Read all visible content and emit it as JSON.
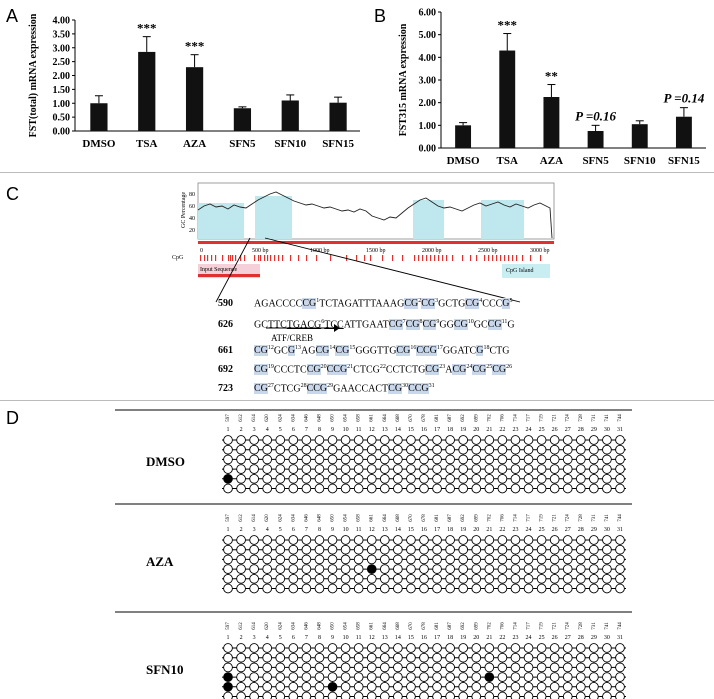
{
  "panels": {
    "a": "A",
    "b": "B",
    "c": "C",
    "d": "D"
  },
  "chart_data": [
    {
      "type": "bar",
      "ylabel": "FST(total) mRNA expression",
      "ylim": [
        0,
        4
      ],
      "yticks": [
        "0.00",
        "0.50",
        "1.00",
        "1.50",
        "2.00",
        "2.50",
        "3.00",
        "3.50",
        "4.00"
      ],
      "categories": [
        "DMSO",
        "TSA",
        "AZA",
        "SFN5",
        "SFN10",
        "SFN15"
      ],
      "values": [
        1.0,
        2.85,
        2.3,
        0.82,
        1.1,
        1.02
      ],
      "errors": [
        0.27,
        0.55,
        0.45,
        0.05,
        0.2,
        0.2
      ],
      "annotations": [
        "",
        "***",
        "***",
        "",
        "",
        ""
      ]
    },
    {
      "type": "bar",
      "ylabel": "FST315 mRNA expression",
      "ylim": [
        0,
        6
      ],
      "yticks": [
        "0.00",
        "1.00",
        "2.00",
        "3.00",
        "4.00",
        "5.00",
        "6.00"
      ],
      "categories": [
        "DMSO",
        "TSA",
        "AZA",
        "SFN5",
        "SFN10",
        "SFN15"
      ],
      "values": [
        1.0,
        4.3,
        2.25,
        0.75,
        1.05,
        1.38
      ],
      "errors": [
        0.12,
        0.75,
        0.55,
        0.25,
        0.15,
        0.4
      ],
      "annotations": [
        "",
        "***",
        "**",
        "P =0.16",
        "",
        "P =0.14"
      ]
    }
  ],
  "cpg_plot": {
    "ylabel": "GC Percentage",
    "yticks": [
      "80",
      "60",
      "40",
      "20"
    ],
    "xticks": [
      "0",
      "500 bp",
      "1000 bp",
      "1500 bp",
      "2000 bp",
      "2500 bp",
      "3000 bp"
    ],
    "cpg_label": "CpG",
    "input_label": "Input Sequence",
    "island_label": "CpG Island"
  },
  "sequence": [
    {
      "num": "590",
      "parts": [
        [
          "t",
          "AGACCCC"
        ],
        [
          "c",
          "CG"
        ],
        [
          "s",
          "1"
        ],
        [
          "t",
          "TCTAGATTTAAAG"
        ],
        [
          "c",
          "CG"
        ],
        [
          "s",
          "2"
        ],
        [
          "c",
          "CG"
        ],
        [
          "s",
          "3"
        ],
        [
          "t",
          "GCTG"
        ],
        [
          "c",
          "CG"
        ],
        [
          "s",
          "4"
        ],
        [
          "t",
          "CCC"
        ],
        [
          "c",
          "G"
        ],
        [
          "s",
          "5"
        ]
      ]
    },
    {
      "num": "626",
      "parts": [
        [
          "t",
          "GCTTC"
        ],
        [
          "u",
          "TGACG"
        ],
        [
          "s",
          "6"
        ],
        [
          "u",
          "TCC"
        ],
        [
          "t",
          "ATTGAAT"
        ],
        [
          "c",
          "CG"
        ],
        [
          "s",
          "7"
        ],
        [
          "c",
          "CG"
        ],
        [
          "s",
          "8"
        ],
        [
          "c",
          "CG"
        ],
        [
          "s",
          "9"
        ],
        [
          "t",
          "GG"
        ],
        [
          "c",
          "CG"
        ],
        [
          "s",
          "10"
        ],
        [
          "t",
          "GC"
        ],
        [
          "c",
          "CG"
        ],
        [
          "s",
          "11"
        ],
        [
          "t",
          "G"
        ]
      ]
    },
    {
      "num": "661",
      "parts": [
        [
          "c",
          "CG"
        ],
        [
          "s",
          "12"
        ],
        [
          "t",
          "GC"
        ],
        [
          "c",
          "G"
        ],
        [
          "s",
          "13"
        ],
        [
          "t",
          "AG"
        ],
        [
          "c",
          "CG"
        ],
        [
          "s",
          "14"
        ],
        [
          "c",
          "CG"
        ],
        [
          "s",
          "15"
        ],
        [
          "t",
          "GGGTTG"
        ],
        [
          "c",
          "CG"
        ],
        [
          "s",
          "16"
        ],
        [
          "c",
          "CCG"
        ],
        [
          "s",
          "17"
        ],
        [
          "t",
          "GGATC"
        ],
        [
          "c",
          "G"
        ],
        [
          "s",
          "18"
        ],
        [
          "t",
          "CTG"
        ]
      ]
    },
    {
      "num": "692",
      "parts": [
        [
          "c",
          "CG"
        ],
        [
          "s",
          "19"
        ],
        [
          "t",
          "CCCTC"
        ],
        [
          "c",
          "CG"
        ],
        [
          "s",
          "20"
        ],
        [
          "c",
          "CCG"
        ],
        [
          "s",
          "21"
        ],
        [
          "t",
          "CTCG"
        ],
        [
          "s",
          "22"
        ],
        [
          "t",
          "CCTCTG"
        ],
        [
          "c",
          "CG"
        ],
        [
          "s",
          "23"
        ],
        [
          "t",
          "A"
        ],
        [
          "c",
          "CG"
        ],
        [
          "s",
          "24"
        ],
        [
          "c",
          "CG"
        ],
        [
          "s",
          "25"
        ],
        [
          "c",
          "CG"
        ],
        [
          "s",
          "26"
        ]
      ]
    },
    {
      "num": "723",
      "parts": [
        [
          "c",
          "CG"
        ],
        [
          "s",
          "27"
        ],
        [
          "t",
          "CTCG"
        ],
        [
          "s",
          "28"
        ],
        [
          "c",
          "CCG"
        ],
        [
          "s",
          "29"
        ],
        [
          "t",
          "GAACCACT"
        ],
        [
          "c",
          "CG"
        ],
        [
          "s",
          "30"
        ],
        [
          "c",
          "CCG"
        ],
        [
          "s",
          "31"
        ]
      ]
    }
  ],
  "motif_label": "ATF/CREB",
  "methylation": {
    "positions": [
      "597",
      "612",
      "614",
      "620",
      "624",
      "634",
      "646",
      "648",
      "650",
      "654",
      "658",
      "661",
      "664",
      "668",
      "670",
      "678",
      "681",
      "687",
      "692",
      "699",
      "702",
      "706",
      "714",
      "717",
      "719",
      "721",
      "724",
      "728",
      "731",
      "741",
      "744"
    ],
    "indices": [
      "1",
      "2",
      "3",
      "4",
      "5",
      "6",
      "7",
      "8",
      "9",
      "10",
      "11",
      "12",
      "13",
      "14",
      "15",
      "16",
      "17",
      "18",
      "19",
      "20",
      "21",
      "22",
      "23",
      "24",
      "25",
      "26",
      "27",
      "28",
      "29",
      "30",
      "31"
    ],
    "groups": [
      {
        "label": "DMSO",
        "methylated": [
          [],
          [],
          [],
          [],
          [
            0
          ],
          []
        ]
      },
      {
        "label": "AZA",
        "methylated": [
          [],
          [],
          [],
          [
            11
          ],
          [],
          []
        ]
      },
      {
        "label": "SFN10",
        "methylated": [
          [],
          [],
          [],
          [
            0,
            20
          ],
          [
            0,
            8
          ],
          []
        ]
      }
    ]
  }
}
